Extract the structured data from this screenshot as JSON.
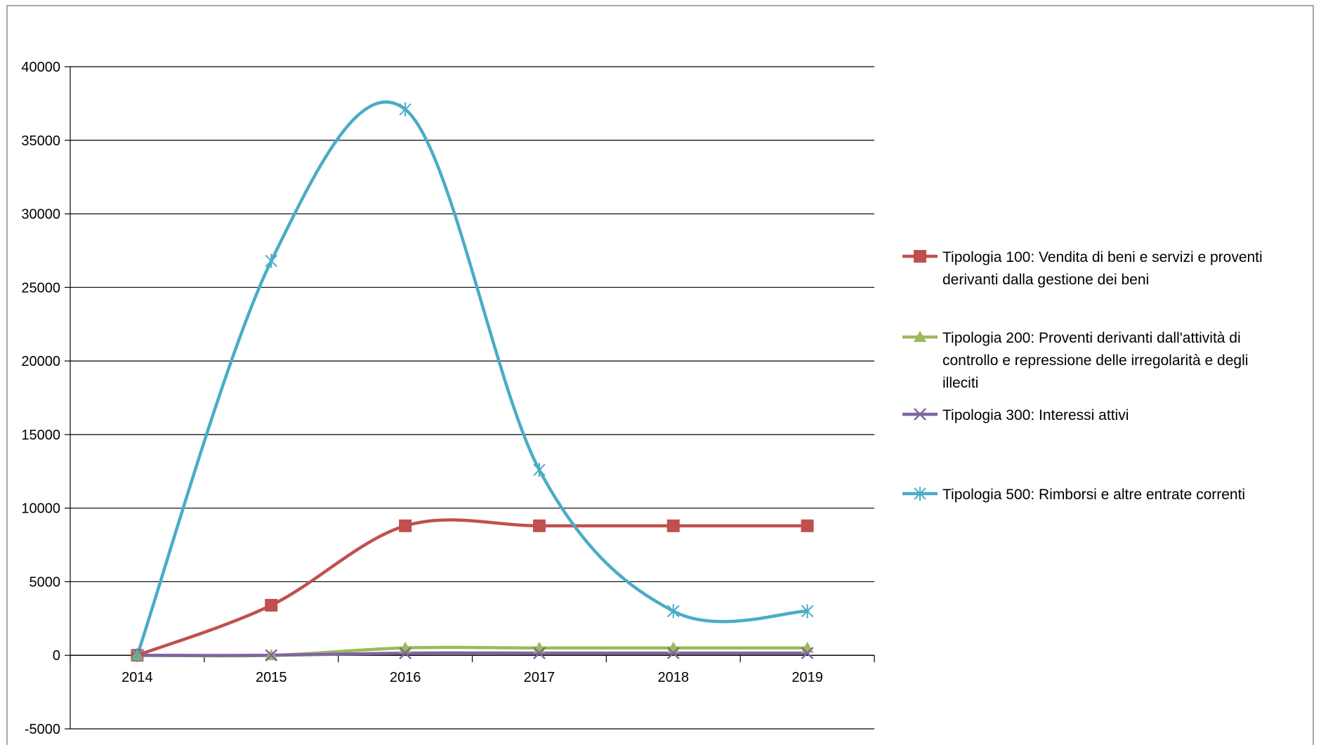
{
  "chart_data": {
    "type": "line",
    "title": "",
    "xlabel": "",
    "ylabel": "",
    "categories": [
      "2014",
      "2015",
      "2016",
      "2017",
      "2018",
      "2019"
    ],
    "ylim": [
      -5000,
      40000
    ],
    "y_ticks": [
      "40000",
      "35000",
      "30000",
      "25000",
      "20000",
      "15000",
      "10000",
      "5000",
      "0",
      "-5000"
    ],
    "grid": "horizontal",
    "legend_position": "right",
    "series": [
      {
        "name_lines": [
          "Tipologia 100: Vendita di beni e servizi e proventi",
          "derivanti dalla gestione dei beni"
        ],
        "values": [
          0,
          3400,
          8800,
          8800,
          8800,
          8800
        ],
        "color": "#c0504d",
        "marker": "square"
      },
      {
        "name_lines": [
          "Tipologia 200: Proventi derivanti dall'attività di",
          "controllo e repressione delle irregolarità e degli",
          "illeciti"
        ],
        "values": [
          0,
          0,
          500,
          500,
          500,
          500
        ],
        "color": "#9bbb59",
        "marker": "triangle"
      },
      {
        "name_lines": [
          "Tipologia 300: Interessi attivi"
        ],
        "values": [
          0,
          0,
          150,
          150,
          150,
          150
        ],
        "color": "#8064a2",
        "marker": "x"
      },
      {
        "name_lines": [
          "Tipologia 500: Rimborsi e altre entrate correnti"
        ],
        "values": [
          0,
          26800,
          37100,
          12600,
          3000,
          3000
        ],
        "color": "#4bacc6",
        "marker": "asterisk"
      }
    ]
  }
}
